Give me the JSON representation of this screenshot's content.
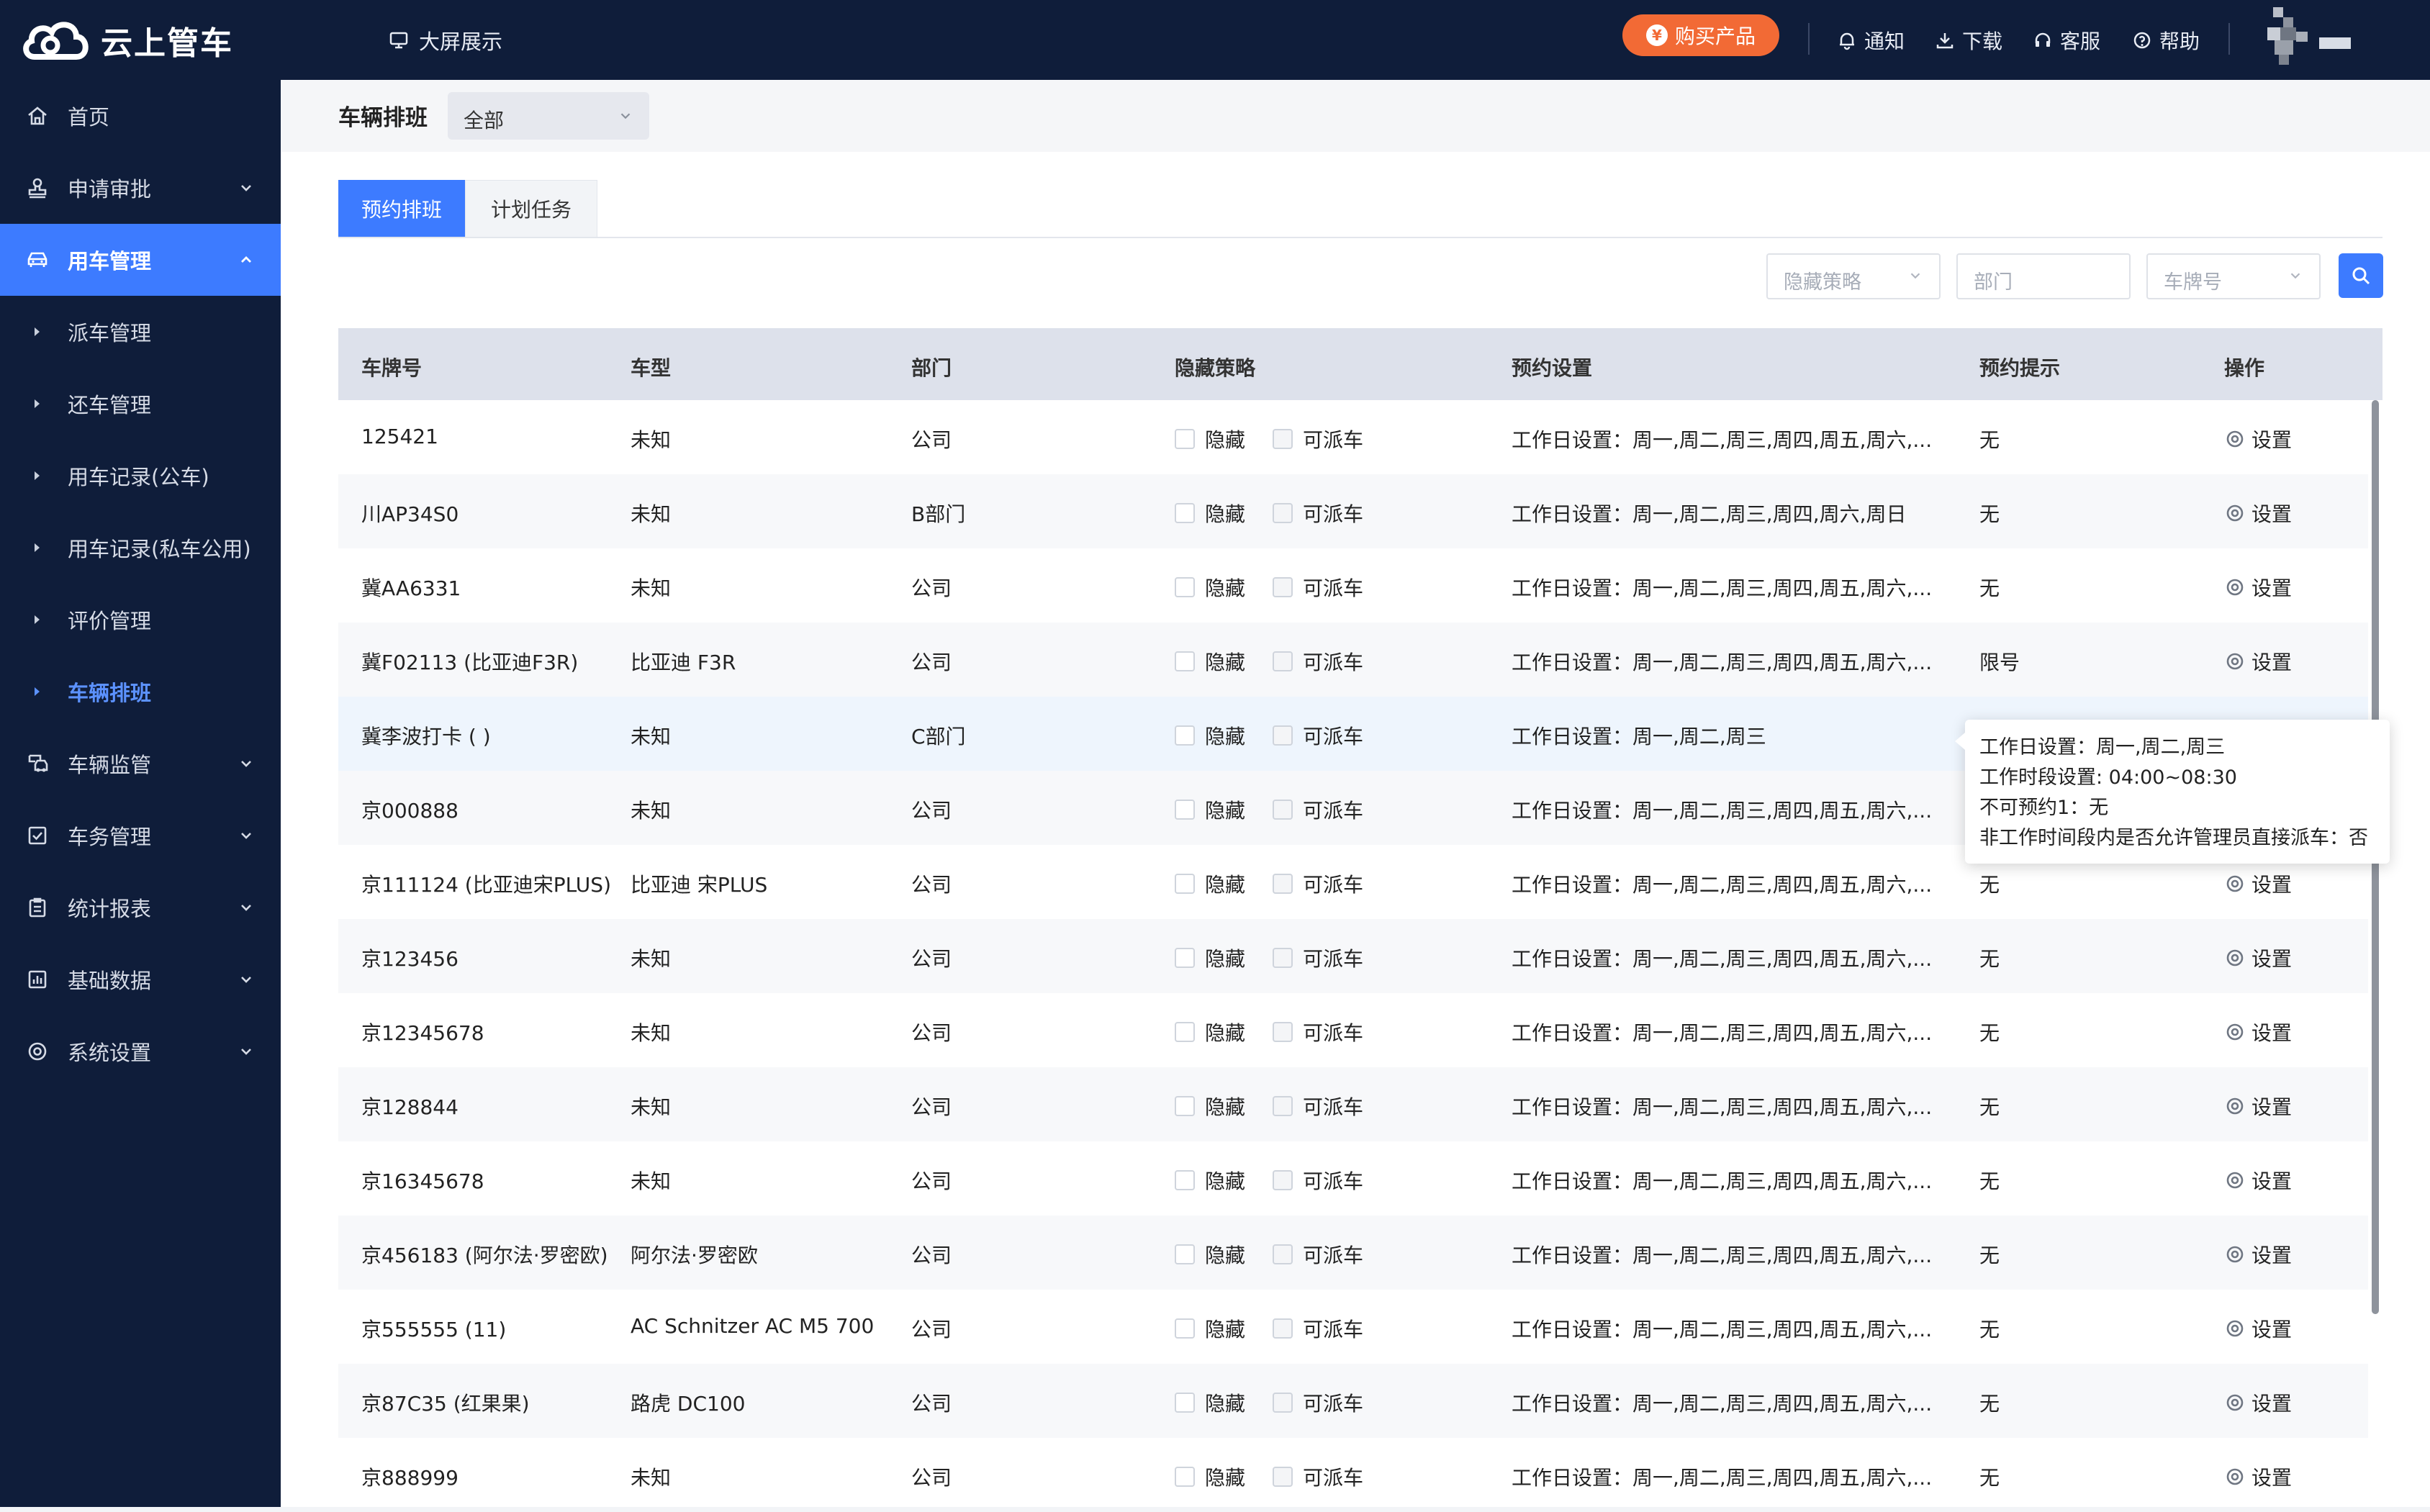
{
  "app": {
    "name": "云上管车"
  },
  "topbar": {
    "bigscreen_label": "大屏展示",
    "buy_label": "购买产品",
    "buy_icon": "¥",
    "tools": [
      {
        "name": "bell",
        "label": "通知"
      },
      {
        "name": "download",
        "label": "下载"
      },
      {
        "name": "headset",
        "label": "客服"
      },
      {
        "name": "help",
        "label": "帮助"
      }
    ]
  },
  "sidebar": {
    "items": [
      {
        "label": "首页",
        "icon": "home-icon"
      },
      {
        "label": "申请审批",
        "icon": "stamp-icon",
        "expandable": true
      },
      {
        "label": "用车管理",
        "icon": "car-icon",
        "expanded": true,
        "active": true
      },
      {
        "label": "派车管理"
      },
      {
        "label": "还车管理"
      },
      {
        "label": "用车记录(公车)"
      },
      {
        "label": "用车记录(私车公用)"
      },
      {
        "label": "评价管理"
      },
      {
        "label": "车辆排班",
        "current": true
      },
      {
        "label": "车辆监管",
        "icon": "monitor-icon",
        "expandable": true
      },
      {
        "label": "车务管理",
        "icon": "checkbox-icon",
        "expandable": true
      },
      {
        "label": "统计报表",
        "icon": "clipboard-icon",
        "expandable": true
      },
      {
        "label": "基础数据",
        "icon": "chart-icon",
        "expandable": true
      },
      {
        "label": "系统设置",
        "icon": "settings-icon",
        "expandable": true
      }
    ]
  },
  "page": {
    "title": "车辆排班",
    "scope_select": "全部",
    "tabs": [
      "预约排班",
      "计划任务"
    ],
    "filters": {
      "strategy": "隐藏策略",
      "department": "部门",
      "plate": "车牌号"
    }
  },
  "table": {
    "columns": [
      "车牌号",
      "车型",
      "部门",
      "隐藏策略",
      "预约设置",
      "预约提示",
      "操作"
    ],
    "hide_label": "隐藏",
    "dispatch_label": "可派车",
    "action_label": "设置",
    "rows": [
      {
        "plate": "125421",
        "model": "未知",
        "dept": "公司",
        "schedule": "工作日设置：周一,周二,周三,周四,周五,周六,...",
        "hint": "无"
      },
      {
        "plate": "川AP34S0",
        "model": "未知",
        "dept": "B部门",
        "schedule": "工作日设置：周一,周二,周三,周四,周六,周日",
        "hint": "无"
      },
      {
        "plate": "冀AA6331",
        "model": "未知",
        "dept": "公司",
        "schedule": "工作日设置：周一,周二,周三,周四,周五,周六,...",
        "hint": "无"
      },
      {
        "plate": "冀F02113 (比亚迪F3R)",
        "model": "比亚迪 F3R",
        "dept": "公司",
        "schedule": "工作日设置：周一,周二,周三,周四,周五,周六,...",
        "hint": "限号"
      },
      {
        "plate": "冀李波打卡 ( )",
        "model": "未知",
        "dept": "C部门",
        "schedule": "工作日设置：周一,周二,周三",
        "hint": ""
      },
      {
        "plate": "京000888",
        "model": "未知",
        "dept": "公司",
        "schedule": "工作日设置：周一,周二,周三,周四,周五,周六,...",
        "hint": ""
      },
      {
        "plate": "京111124 (比亚迪宋PLUS)",
        "model": "比亚迪 宋PLUS",
        "dept": "公司",
        "schedule": "工作日设置：周一,周二,周三,周四,周五,周六,...",
        "hint": "无"
      },
      {
        "plate": "京123456",
        "model": "未知",
        "dept": "公司",
        "schedule": "工作日设置：周一,周二,周三,周四,周五,周六,...",
        "hint": "无"
      },
      {
        "plate": "京12345678",
        "model": "未知",
        "dept": "公司",
        "schedule": "工作日设置：周一,周二,周三,周四,周五,周六,...",
        "hint": "无"
      },
      {
        "plate": "京128844",
        "model": "未知",
        "dept": "公司",
        "schedule": "工作日设置：周一,周二,周三,周四,周五,周六,...",
        "hint": "无"
      },
      {
        "plate": "京16345678",
        "model": "未知",
        "dept": "公司",
        "schedule": "工作日设置：周一,周二,周三,周四,周五,周六,...",
        "hint": "无"
      },
      {
        "plate": "京456183 (阿尔法·罗密欧)",
        "model": "阿尔法·罗密欧",
        "dept": "公司",
        "schedule": "工作日设置：周一,周二,周三,周四,周五,周六,...",
        "hint": "无"
      },
      {
        "plate": "京555555 (11)",
        "model": "AC Schnitzer AC M5 700",
        "dept": "公司",
        "schedule": "工作日设置：周一,周二,周三,周四,周五,周六,...",
        "hint": "无"
      },
      {
        "plate": "京87C35 (红果果)",
        "model": "路虎 DC100",
        "dept": "公司",
        "schedule": "工作日设置：周一,周二,周三,周四,周五,周六,...",
        "hint": "无"
      },
      {
        "plate": "京888999",
        "model": "未知",
        "dept": "公司",
        "schedule": "工作日设置：周一,周二,周三,周四,周五,周六,...",
        "hint": "无"
      }
    ]
  },
  "tooltip": {
    "lines": [
      "工作日设置：周一,周二,周三",
      "工作时段设置: 04:00~08:30",
      "不可预约1：无",
      "非工作时间段内是否允许管理员直接派车：否"
    ]
  },
  "colors": {
    "accent": "#3d7bff",
    "sidebar_bg": "#0f1d3a",
    "buy": "#f26a35"
  }
}
